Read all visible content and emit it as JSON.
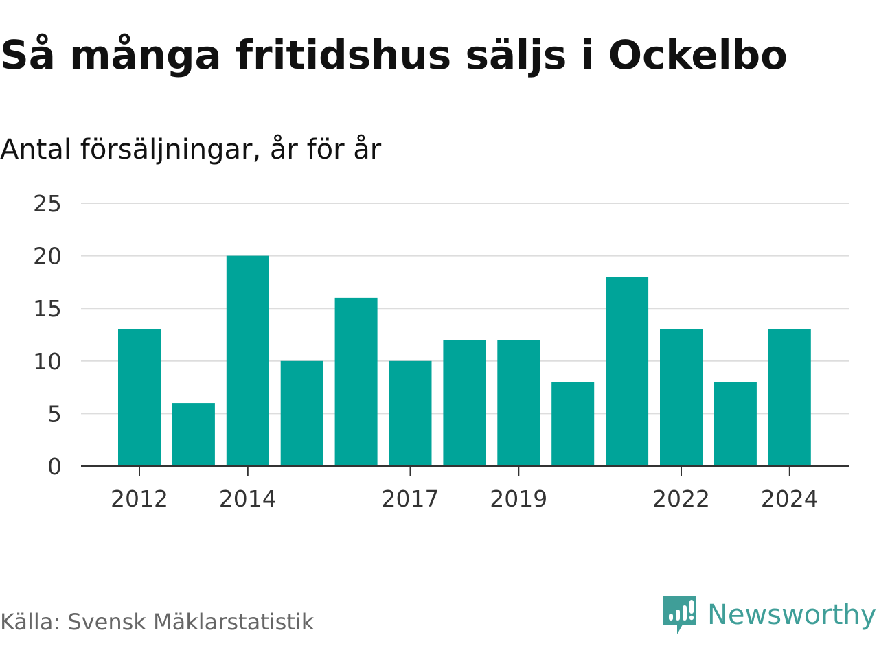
{
  "title": "Så många fritidshus säljs i Ockelbo",
  "subtitle": "Antal försäljningar, år för år",
  "source": "Källa: Svensk Mäklarstatistik",
  "logo": {
    "text": "Newsworthy",
    "icon": "newsworthy-bar-chart-speech-bubble-icon",
    "color": "#3f9e98"
  },
  "colors": {
    "bar": "#00a499",
    "grid": "#dddddd",
    "axis": "#333333",
    "tick_text": "#333333"
  },
  "chart_data": {
    "type": "bar",
    "categories": [
      "2012",
      "2013",
      "2014",
      "2015",
      "2016",
      "2017",
      "2018",
      "2019",
      "2020",
      "2021",
      "2022",
      "2023",
      "2024"
    ],
    "values": [
      13,
      6,
      20,
      10,
      16,
      10,
      12,
      12,
      8,
      18,
      13,
      8,
      13
    ],
    "x_tick_labels": [
      "2012",
      "2014",
      "2017",
      "2019",
      "2022",
      "2024"
    ],
    "y_ticks": [
      0,
      5,
      10,
      15,
      20,
      25
    ],
    "ylim": [
      0,
      25
    ],
    "grid": true,
    "legend": "none"
  }
}
